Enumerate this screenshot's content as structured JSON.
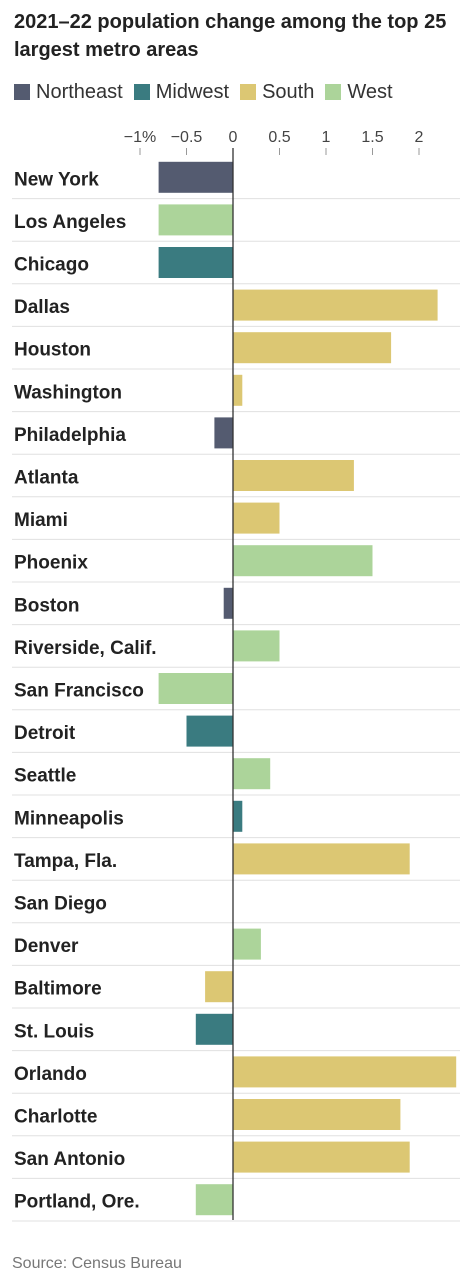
{
  "title": "2021–22 population change among the top 25 largest metro areas",
  "source": "Source: Census Bureau",
  "colors": {
    "Northeast": "#545b70",
    "Midwest": "#3a7b80",
    "South": "#dcc773",
    "West": "#acd49a"
  },
  "legend": [
    {
      "label": "Northeast",
      "key": "Northeast"
    },
    {
      "label": "Midwest",
      "key": "Midwest"
    },
    {
      "label": "South",
      "key": "South"
    },
    {
      "label": "West",
      "key": "West"
    }
  ],
  "chart_data": {
    "type": "bar",
    "orientation": "horizontal",
    "title": "2021–22 population change among the top 25 largest metro areas",
    "xlim": [
      -1,
      2.4
    ],
    "ticks": [
      {
        "value": -1,
        "label": "−1%"
      },
      {
        "value": -0.5,
        "label": "−0.5"
      },
      {
        "value": 0,
        "label": "0"
      },
      {
        "value": 0.5,
        "label": "0.5"
      },
      {
        "value": 1,
        "label": "1"
      },
      {
        "value": 1.5,
        "label": "1.5"
      },
      {
        "value": 2,
        "label": "2"
      }
    ],
    "grid": true,
    "legend_position": "top",
    "categories": [
      "New York",
      "Los Angeles",
      "Chicago",
      "Dallas",
      "Houston",
      "Washington",
      "Philadelphia",
      "Atlanta",
      "Miami",
      "Phoenix",
      "Boston",
      "Riverside, Calif.",
      "San Francisco",
      "Detroit",
      "Seattle",
      "Minneapolis",
      "Tampa, Fla.",
      "San Diego",
      "Denver",
      "Baltimore",
      "St. Louis",
      "Orlando",
      "Charlotte",
      "San Antonio",
      "Portland, Ore."
    ],
    "values": [
      -0.8,
      -0.8,
      -0.8,
      2.2,
      1.7,
      0.1,
      -0.2,
      1.3,
      0.5,
      1.5,
      -0.1,
      0.5,
      -0.8,
      -0.5,
      0.4,
      0.1,
      1.9,
      0.0,
      0.3,
      -0.3,
      -0.4,
      2.4,
      1.8,
      1.9,
      -0.4
    ],
    "regions": [
      "Northeast",
      "West",
      "Midwest",
      "South",
      "South",
      "South",
      "Northeast",
      "South",
      "South",
      "West",
      "Northeast",
      "West",
      "West",
      "Midwest",
      "West",
      "Midwest",
      "South",
      "West",
      "West",
      "South",
      "Midwest",
      "South",
      "South",
      "South",
      "West"
    ]
  }
}
